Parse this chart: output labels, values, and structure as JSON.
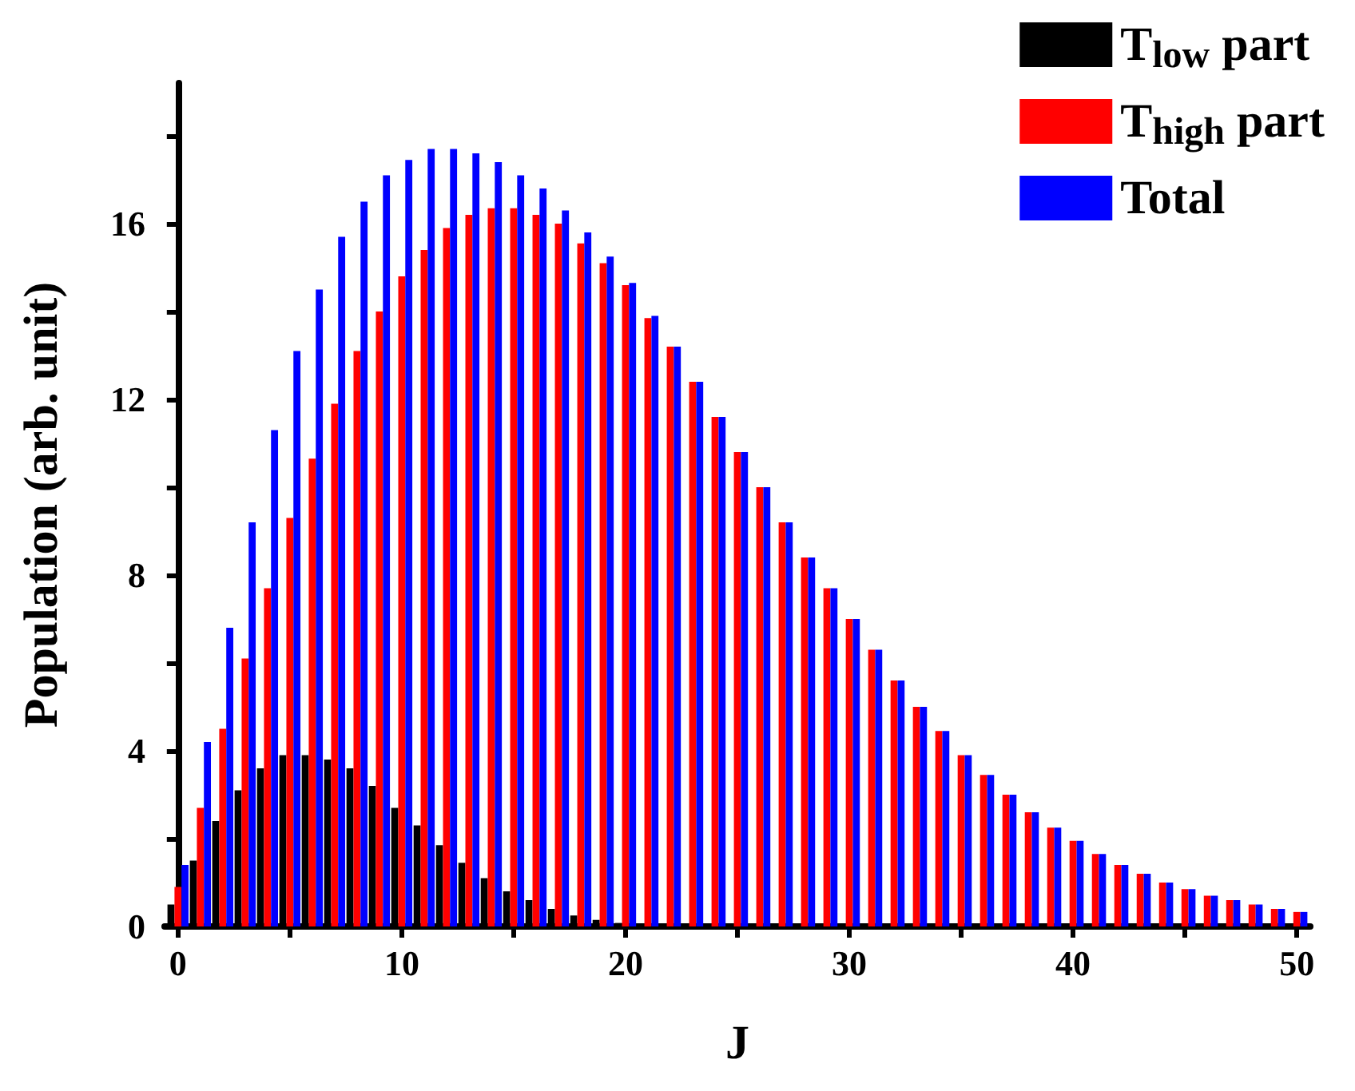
{
  "chart_data": {
    "type": "bar",
    "xlabel": "J",
    "ylabel": "Population (arb. unit)",
    "x": [
      0,
      1,
      2,
      3,
      4,
      5,
      6,
      7,
      8,
      9,
      10,
      11,
      12,
      13,
      14,
      15,
      16,
      17,
      18,
      19,
      20,
      21,
      22,
      23,
      24,
      25,
      26,
      27,
      28,
      29,
      30,
      31,
      32,
      33,
      34,
      35,
      36,
      37,
      38,
      39,
      40,
      41,
      42,
      43,
      44,
      45,
      46,
      47,
      48,
      49,
      50
    ],
    "xlim": [
      -0.6,
      50.6
    ],
    "xticks": [
      0,
      {
        "value": 5,
        "label": null
      },
      10,
      {
        "value": 15,
        "label": null
      },
      20,
      {
        "value": 25,
        "label": null
      },
      30,
      {
        "value": 35,
        "label": null
      },
      40,
      {
        "value": 45,
        "label": null
      },
      50
    ],
    "ylim": [
      0,
      19.2
    ],
    "yticks": [
      0,
      {
        "value": 2,
        "label": null
      },
      4,
      {
        "value": 6,
        "label": null
      },
      8,
      {
        "value": 10,
        "label": null
      },
      12,
      {
        "value": 14,
        "label": null
      },
      16,
      {
        "value": 18,
        "label": null
      }
    ],
    "legend": "top right",
    "series": [
      {
        "name": "T$_{low}$ part",
        "color": "#000000",
        "values": [
          0.5,
          1.5,
          2.4,
          3.1,
          3.6,
          3.9,
          3.9,
          3.8,
          3.6,
          3.2,
          2.7,
          2.3,
          1.85,
          1.45,
          1.1,
          0.8,
          0.6,
          0.4,
          0.25,
          0.15,
          0.08,
          0.04,
          0,
          0,
          0,
          0,
          0,
          0,
          0,
          0,
          0,
          0,
          0,
          0,
          0,
          0,
          0,
          0,
          0,
          0,
          0,
          0,
          0,
          0,
          0,
          0,
          0,
          0,
          0,
          0,
          0
        ]
      },
      {
        "name": "T$_{high}$ part",
        "color": "#ff0000",
        "values": [
          0.9,
          2.7,
          4.5,
          6.1,
          7.7,
          9.3,
          10.65,
          11.9,
          13.1,
          14.0,
          14.8,
          15.4,
          15.9,
          16.2,
          16.35,
          16.35,
          16.2,
          16.0,
          15.55,
          15.1,
          14.6,
          13.85,
          13.2,
          12.4,
          11.6,
          10.8,
          10.0,
          9.2,
          8.4,
          7.7,
          7.0,
          6.3,
          5.6,
          5.0,
          4.45,
          3.9,
          3.45,
          3.0,
          2.6,
          2.25,
          1.95,
          1.65,
          1.4,
          1.2,
          1.0,
          0.85,
          0.7,
          0.6,
          0.5,
          0.4,
          0.33
        ]
      },
      {
        "name": "Total",
        "color": "#0000ff",
        "values": [
          1.4,
          4.2,
          6.8,
          9.2,
          11.3,
          13.1,
          14.5,
          15.7,
          16.5,
          17.1,
          17.45,
          17.7,
          17.7,
          17.6,
          17.4,
          17.1,
          16.8,
          16.3,
          15.8,
          15.25,
          14.65,
          13.9,
          13.2,
          12.4,
          11.6,
          10.8,
          10.0,
          9.2,
          8.4,
          7.7,
          7.0,
          6.3,
          5.6,
          5.0,
          4.45,
          3.9,
          3.45,
          3.0,
          2.6,
          2.25,
          1.95,
          1.65,
          1.4,
          1.2,
          1.0,
          0.85,
          0.7,
          0.6,
          0.5,
          0.4,
          0.33
        ]
      }
    ]
  }
}
